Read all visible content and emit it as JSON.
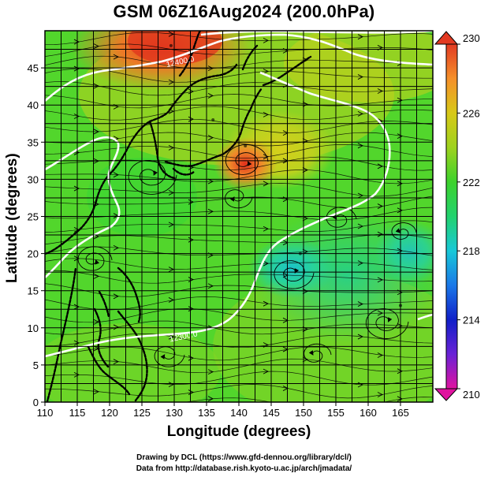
{
  "title": "GSM 06Z16Aug2024 (200.0hPa)",
  "chart_data": {
    "type": "heatmap",
    "title": "GSM 06Z16Aug2024 (200.0hPa)",
    "xlabel": "Longitude (degrees)",
    "ylabel": "Latitude (degrees)",
    "xlim": [
      110,
      170
    ],
    "ylim": [
      0,
      50
    ],
    "x_ticks": [
      "110",
      "115",
      "120",
      "125",
      "130",
      "135",
      "140",
      "145",
      "150",
      "155",
      "160",
      "165"
    ],
    "y_ticks": [
      "0",
      "5",
      "10",
      "15",
      "20",
      "25",
      "30",
      "35",
      "40",
      "45"
    ],
    "grid": true,
    "colorbar": {
      "min": 210,
      "max": 230,
      "tick_labels": [
        "210",
        "214",
        "218",
        "222",
        "226",
        "230"
      ],
      "colors": [
        "#e0139f",
        "#6a22d6",
        "#1020c8",
        "#1a78e8",
        "#18c8d8",
        "#22d26e",
        "#3cd22c",
        "#9ed21e",
        "#d8c818",
        "#f5902a",
        "#e23a22"
      ]
    },
    "field_highs": [
      {
        "lon": 129.5,
        "lat": 48.0,
        "value": 229.5
      },
      {
        "lon": 141.0,
        "lat": 34.5,
        "value": 228.0
      },
      {
        "lon": 136.0,
        "lat": 38.0,
        "value": 225.0
      }
    ],
    "field_lows": [
      {
        "lon": 149.5,
        "lat": 20.0,
        "value": 219.0
      },
      {
        "lon": 165.0,
        "lat": 13.0,
        "value": 220.5
      }
    ],
    "contour_labels": [
      {
        "text": "12400.0",
        "lon": 131.0,
        "lat": 45.5
      },
      {
        "text": "12300.0",
        "lon": 131.5,
        "lat": 8.5
      }
    ]
  },
  "credits": {
    "line1": "Drawing by DCL (https://www.gfd-dennou.org/library/dcl/)",
    "line2": "Data from http://database.rish.kyoto-u.ac.jp/arch/jmadata/"
  }
}
